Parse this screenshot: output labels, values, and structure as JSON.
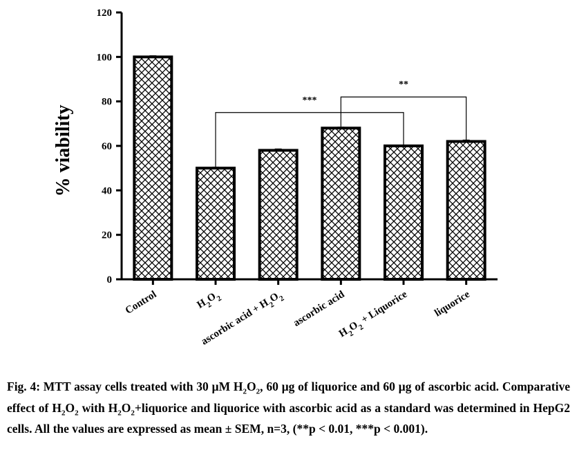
{
  "chart_data": {
    "type": "bar",
    "categories": [
      "Control",
      "H2O2",
      "ascorbic acid + H2O2",
      "ascorbic acid",
      "H2O2 + Liquorice",
      "liquorice"
    ],
    "category_labels": [
      {
        "text": "Control"
      },
      {
        "text": "H",
        "parts": [
          {
            "t": "H"
          },
          {
            "t": "2",
            "sub": true
          },
          {
            "t": "O"
          },
          {
            "t": "2",
            "sub": true
          }
        ]
      },
      {
        "text": "ascorbic acid + H2O2",
        "parts": [
          {
            "t": "ascorbic acid + H"
          },
          {
            "t": "2",
            "sub": true
          },
          {
            "t": "O"
          },
          {
            "t": "2",
            "sub": true
          }
        ]
      },
      {
        "text": "ascorbic acid"
      },
      {
        "text": "H2O2 + Liquorice",
        "parts": [
          {
            "t": "H"
          },
          {
            "t": "2",
            "sub": true
          },
          {
            "t": "O"
          },
          {
            "t": "2",
            "sub": true
          },
          {
            "t": " + Liquorice"
          }
        ]
      },
      {
        "text": "liquorice"
      }
    ],
    "values": [
      100,
      50,
      58,
      68,
      60,
      62
    ],
    "errors": [
      0.4,
      0.3,
      0.5,
      0.3,
      0.3,
      0.5
    ],
    "ylabel": "% viability",
    "xlabel": "",
    "ylim": [
      0,
      120
    ],
    "yticks": [
      0,
      20,
      40,
      60,
      80,
      100,
      120
    ],
    "bar_pattern": "crosshatch",
    "bar_edge_color": "#000000",
    "bar_fill_color": "#ffffff",
    "significance": [
      {
        "from": 1,
        "to": 4,
        "label": "***",
        "y": 75
      },
      {
        "from": 3,
        "to": 5,
        "label": "**",
        "y": 82
      }
    ]
  },
  "caption": {
    "segments": [
      {
        "t": "Fig. 4: MTT assay cells treated with 30 µM H"
      },
      {
        "t": "2",
        "sub": true
      },
      {
        "t": "O"
      },
      {
        "t": "2",
        "sub": true
      },
      {
        "t": ", 60 µg of liquorice and 60 µg of ascorbic acid. Comparative effect of H"
      },
      {
        "t": "2",
        "sub": true
      },
      {
        "t": "O"
      },
      {
        "t": "2",
        "sub": true
      },
      {
        "t": " with H"
      },
      {
        "t": "2",
        "sub": true
      },
      {
        "t": "O"
      },
      {
        "t": "2",
        "sub": true
      },
      {
        "t": "+liquorice and liquorice with ascorbic acid as a standard was determined in HepG2 cells. All the values are expressed as mean ± SEM, n=3, (**p < 0.01, ***p < 0.001)."
      }
    ]
  }
}
